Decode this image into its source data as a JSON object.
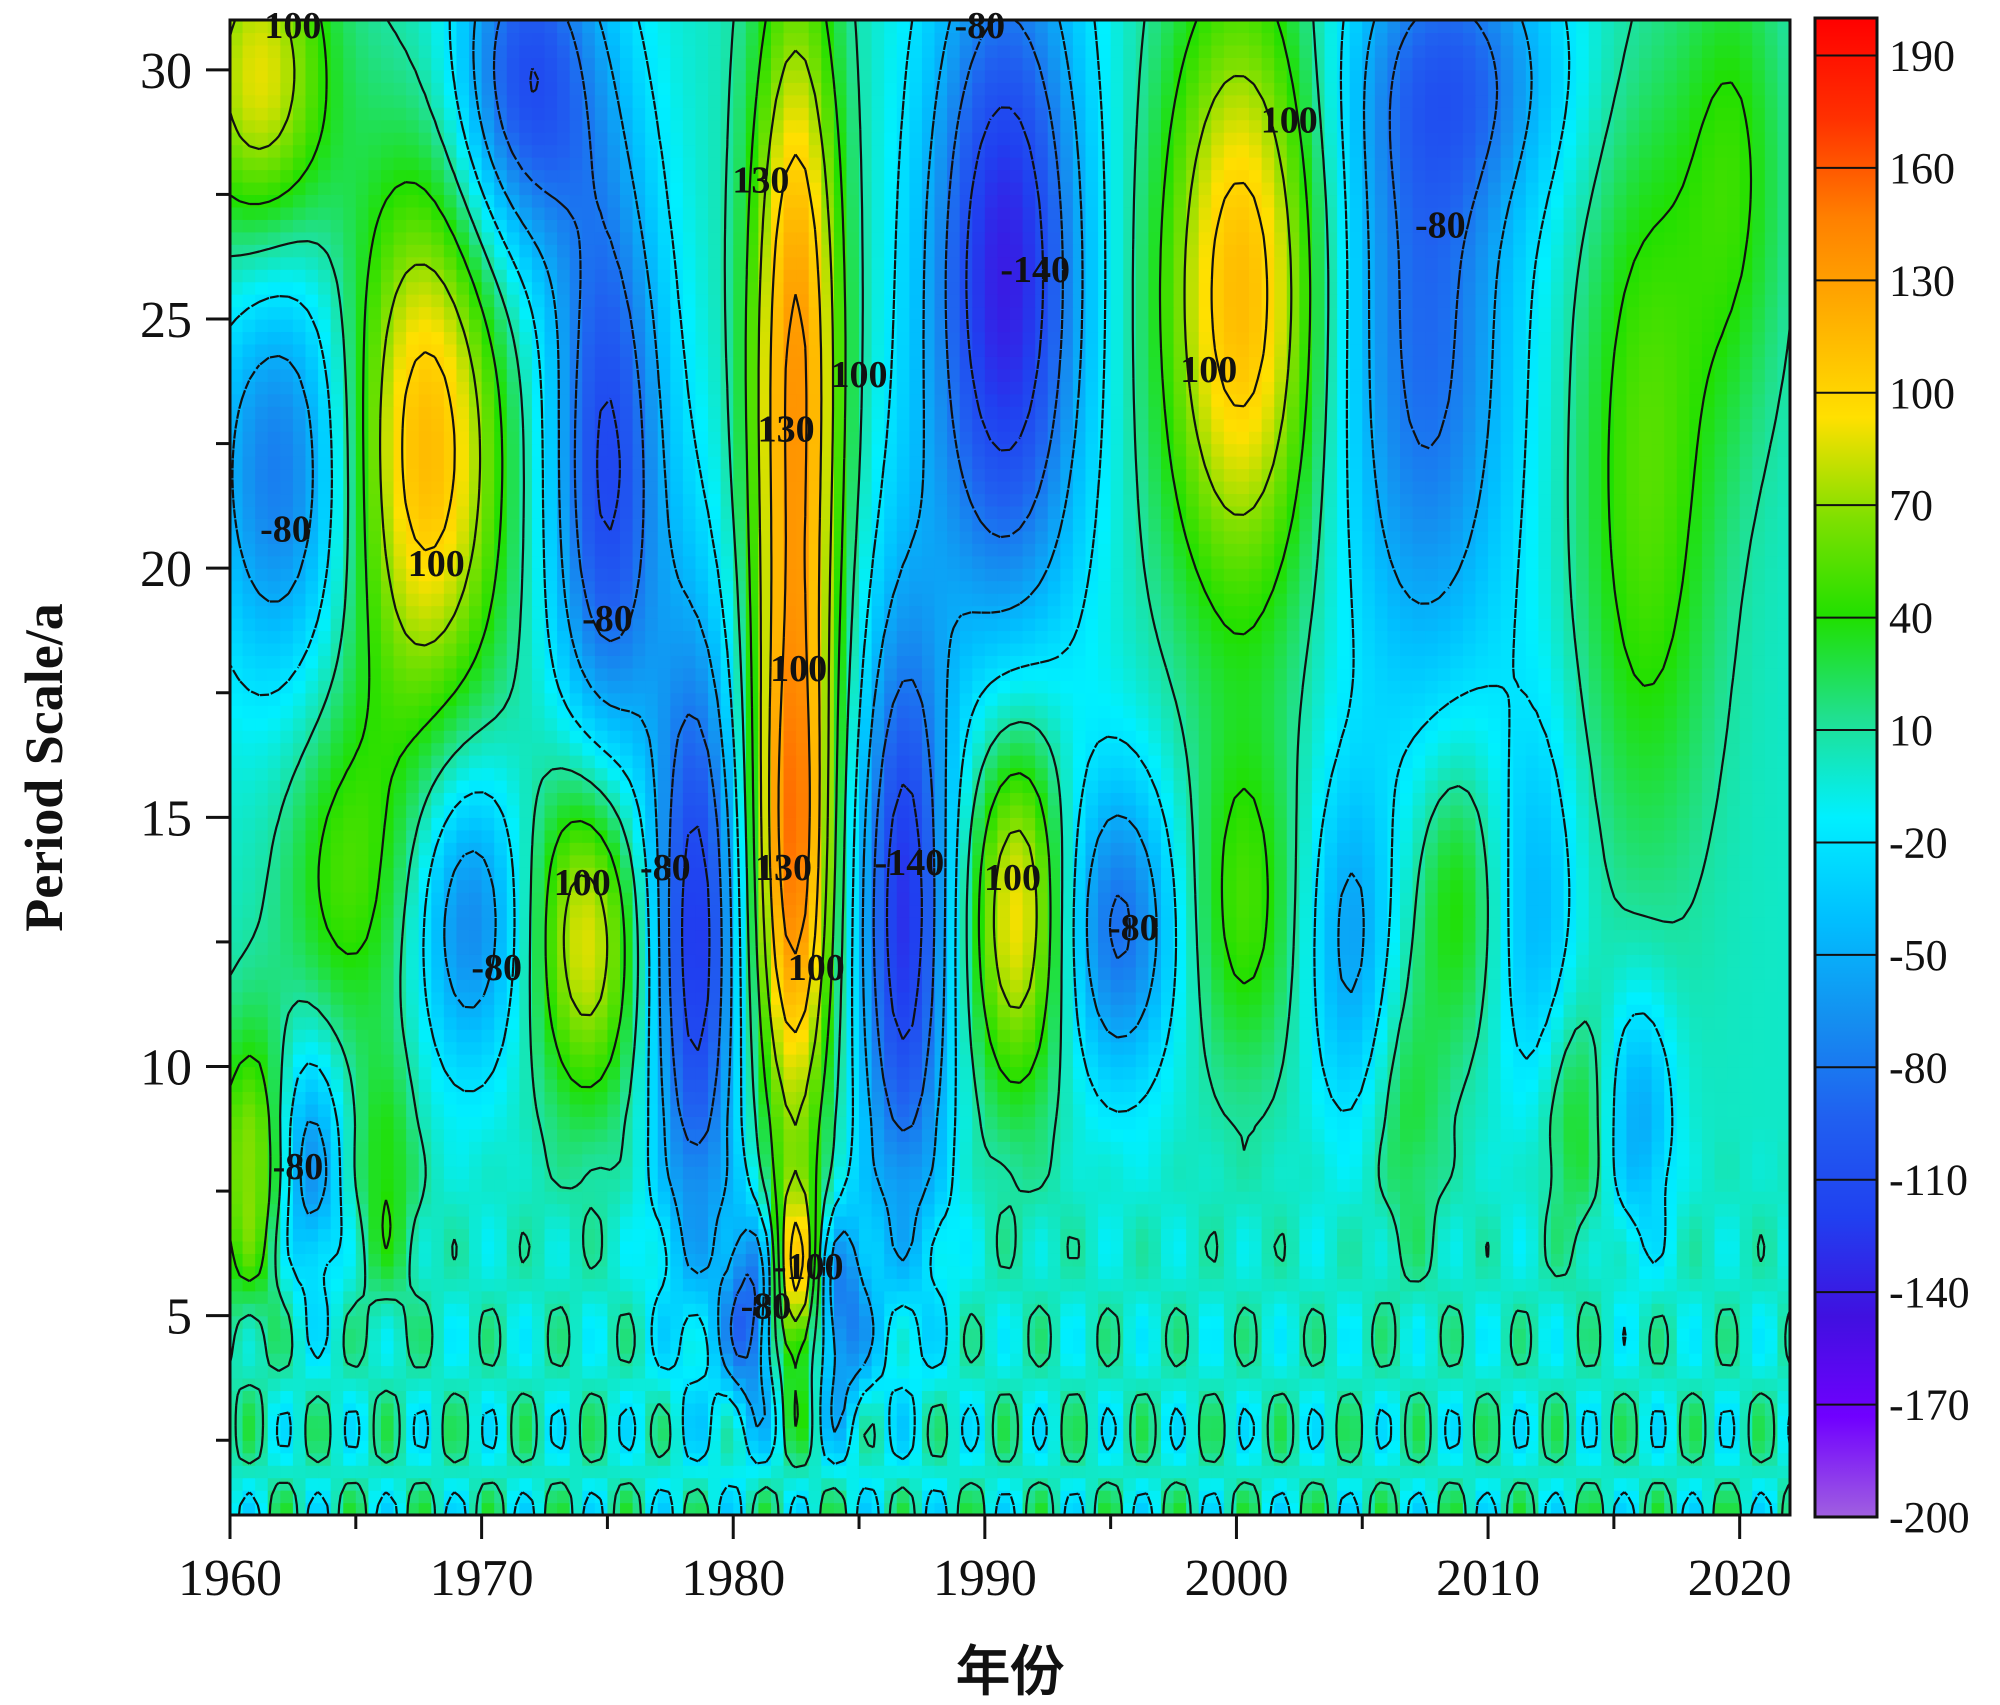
{
  "chart_data": {
    "type": "heatmap",
    "subtype": "wavelet-contour",
    "xlabel": "年份",
    "ylabel": "Period Scale/a",
    "xlim": [
      1960,
      2022
    ],
    "ylim": [
      1,
      31
    ],
    "xticks": [
      1960,
      1970,
      1980,
      1990,
      2000,
      2010,
      2020
    ],
    "yticks": [
      5,
      10,
      15,
      20,
      25,
      30
    ],
    "colorbar": {
      "min": -200,
      "max": 200,
      "ticks": [
        190,
        160,
        130,
        100,
        70,
        40,
        10,
        -20,
        -50,
        -80,
        -110,
        -140,
        -170,
        -200
      ],
      "colors": [
        "#a060e0",
        "#7000ff",
        "#4010e0",
        "#2040f0",
        "#2060f0",
        "#1490f0",
        "#00c0ff",
        "#00f0ff",
        "#20e090",
        "#20e000",
        "#80e000",
        "#ffe000",
        "#ffb000",
        "#ff8000",
        "#ff3000",
        "#ff0000"
      ]
    },
    "centers": [
      {
        "x": 1967.8,
        "y": 22.4,
        "v": 115,
        "sx": 2.2,
        "sy": 4.0
      },
      {
        "x": 1961.2,
        "y": 29.8,
        "v": 90,
        "sx": 2.0,
        "sy": 2.5
      },
      {
        "x": 1964.6,
        "y": 13.8,
        "v": 48,
        "sx": 1.8,
        "sy": 2.5
      },
      {
        "x": 1974.2,
        "y": 12.8,
        "v": 98,
        "sx": 1.5,
        "sy": 2.5
      },
      {
        "x": 1982.5,
        "y": 24.2,
        "v": 132,
        "sx": 1.3,
        "sy": 5.5
      },
      {
        "x": 1982.4,
        "y": 13.8,
        "v": 128,
        "sx": 1.1,
        "sy": 4.0
      },
      {
        "x": 1982.5,
        "y": 5.6,
        "v": 105,
        "sx": 0.7,
        "sy": 1.5
      },
      {
        "x": 1991.3,
        "y": 13.2,
        "v": 100,
        "sx": 1.4,
        "sy": 2.7
      },
      {
        "x": 2000.2,
        "y": 25.5,
        "v": 115,
        "sx": 2.3,
        "sy": 4.5
      },
      {
        "x": 1961.0,
        "y": 8.0,
        "v": 78,
        "sx": 1.2,
        "sy": 2.0
      },
      {
        "x": 2000.3,
        "y": 13.2,
        "v": 48,
        "sx": 1.5,
        "sy": 2.5
      },
      {
        "x": 2008.7,
        "y": 13.4,
        "v": 45,
        "sx": 1.2,
        "sy": 2.2
      },
      {
        "x": 2016.3,
        "y": 22.0,
        "v": 55,
        "sx": 2.0,
        "sy": 5.5
      },
      {
        "x": 2019.8,
        "y": 28.0,
        "v": 40,
        "sx": 1.5,
        "sy": 3.5
      },
      {
        "x": 1966.2,
        "y": 7.8,
        "v": 40,
        "sx": 0.9,
        "sy": 1.8
      },
      {
        "x": 2013.4,
        "y": 9.0,
        "v": 40,
        "sx": 1.0,
        "sy": 1.8
      },
      {
        "x": 2006.8,
        "y": 9.0,
        "v": 30,
        "sx": 1.0,
        "sy": 2.0
      },
      {
        "x": 1962.0,
        "y": 22.0,
        "v": -80,
        "sx": 2.0,
        "sy": 3.0
      },
      {
        "x": 1971.8,
        "y": 29.8,
        "v": -110,
        "sx": 2.0,
        "sy": 2.5
      },
      {
        "x": 1975.0,
        "y": 22.0,
        "v": -115,
        "sx": 1.6,
        "sy": 4.5
      },
      {
        "x": 1969.5,
        "y": 13.0,
        "v": -75,
        "sx": 1.5,
        "sy": 2.2
      },
      {
        "x": 1978.5,
        "y": 12.5,
        "v": -125,
        "sx": 1.2,
        "sy": 4.5
      },
      {
        "x": 1986.8,
        "y": 13.0,
        "v": -128,
        "sx": 1.3,
        "sy": 4.5
      },
      {
        "x": 1990.8,
        "y": 25.8,
        "v": -140,
        "sx": 2.2,
        "sy": 5.0
      },
      {
        "x": 1995.3,
        "y": 12.8,
        "v": -85,
        "sx": 1.6,
        "sy": 2.2
      },
      {
        "x": 2007.5,
        "y": 24.5,
        "v": -88,
        "sx": 2.5,
        "sy": 5.0
      },
      {
        "x": 1963.0,
        "y": 8.0,
        "v": -80,
        "sx": 1.0,
        "sy": 1.8
      },
      {
        "x": 1980.8,
        "y": 5.0,
        "v": -95,
        "sx": 0.8,
        "sy": 1.5
      },
      {
        "x": 1984.2,
        "y": 5.0,
        "v": -85,
        "sx": 0.8,
        "sy": 1.5
      },
      {
        "x": 2004.5,
        "y": 12.5,
        "v": -55,
        "sx": 1.2,
        "sy": 2.5
      },
      {
        "x": 2012.0,
        "y": 13.0,
        "v": -45,
        "sx": 1.2,
        "sy": 3.0
      },
      {
        "x": 2016.0,
        "y": 9.0,
        "v": -55,
        "sx": 1.0,
        "sy": 1.8
      },
      {
        "x": 2009.0,
        "y": 30.0,
        "v": -60,
        "sx": 3.0,
        "sy": 2.0
      }
    ],
    "annotations": [
      {
        "text": "100",
        "x": 1962.5,
        "y": 30.9
      },
      {
        "text": "-80",
        "x": 1989.8,
        "y": 30.9
      },
      {
        "text": "130",
        "x": 1981.1,
        "y": 27.8
      },
      {
        "text": "100",
        "x": 2002.1,
        "y": 29.0
      },
      {
        "text": "100",
        "x": 1985.0,
        "y": 23.9
      },
      {
        "text": "-140",
        "x": 1992.0,
        "y": 26.0
      },
      {
        "text": "-80",
        "x": 2008.1,
        "y": 26.9
      },
      {
        "text": "100",
        "x": 1998.9,
        "y": 24.0
      },
      {
        "text": "130",
        "x": 1982.1,
        "y": 22.8
      },
      {
        "text": "-80",
        "x": 1962.2,
        "y": 20.8
      },
      {
        "text": "100",
        "x": 1968.2,
        "y": 20.1
      },
      {
        "text": "-80",
        "x": 1975.0,
        "y": 19.0
      },
      {
        "text": "100",
        "x": 1982.6,
        "y": 18.0
      },
      {
        "text": "100",
        "x": 1974.0,
        "y": 13.7
      },
      {
        "text": "-80",
        "x": 1977.3,
        "y": 14.0
      },
      {
        "text": "130",
        "x": 1982.0,
        "y": 14.0
      },
      {
        "text": "-140",
        "x": 1987.0,
        "y": 14.1
      },
      {
        "text": "100",
        "x": 1991.1,
        "y": 13.8
      },
      {
        "text": "-80",
        "x": 1970.6,
        "y": 12.0
      },
      {
        "text": "-80",
        "x": 1995.9,
        "y": 12.8
      },
      {
        "text": "100",
        "x": 1983.3,
        "y": 12.0
      },
      {
        "text": "-80",
        "x": 1962.7,
        "y": 8.0
      },
      {
        "text": "-100",
        "x": 1983.0,
        "y": 6.0
      },
      {
        "text": "-80",
        "x": 1981.3,
        "y": 5.2
      }
    ]
  }
}
